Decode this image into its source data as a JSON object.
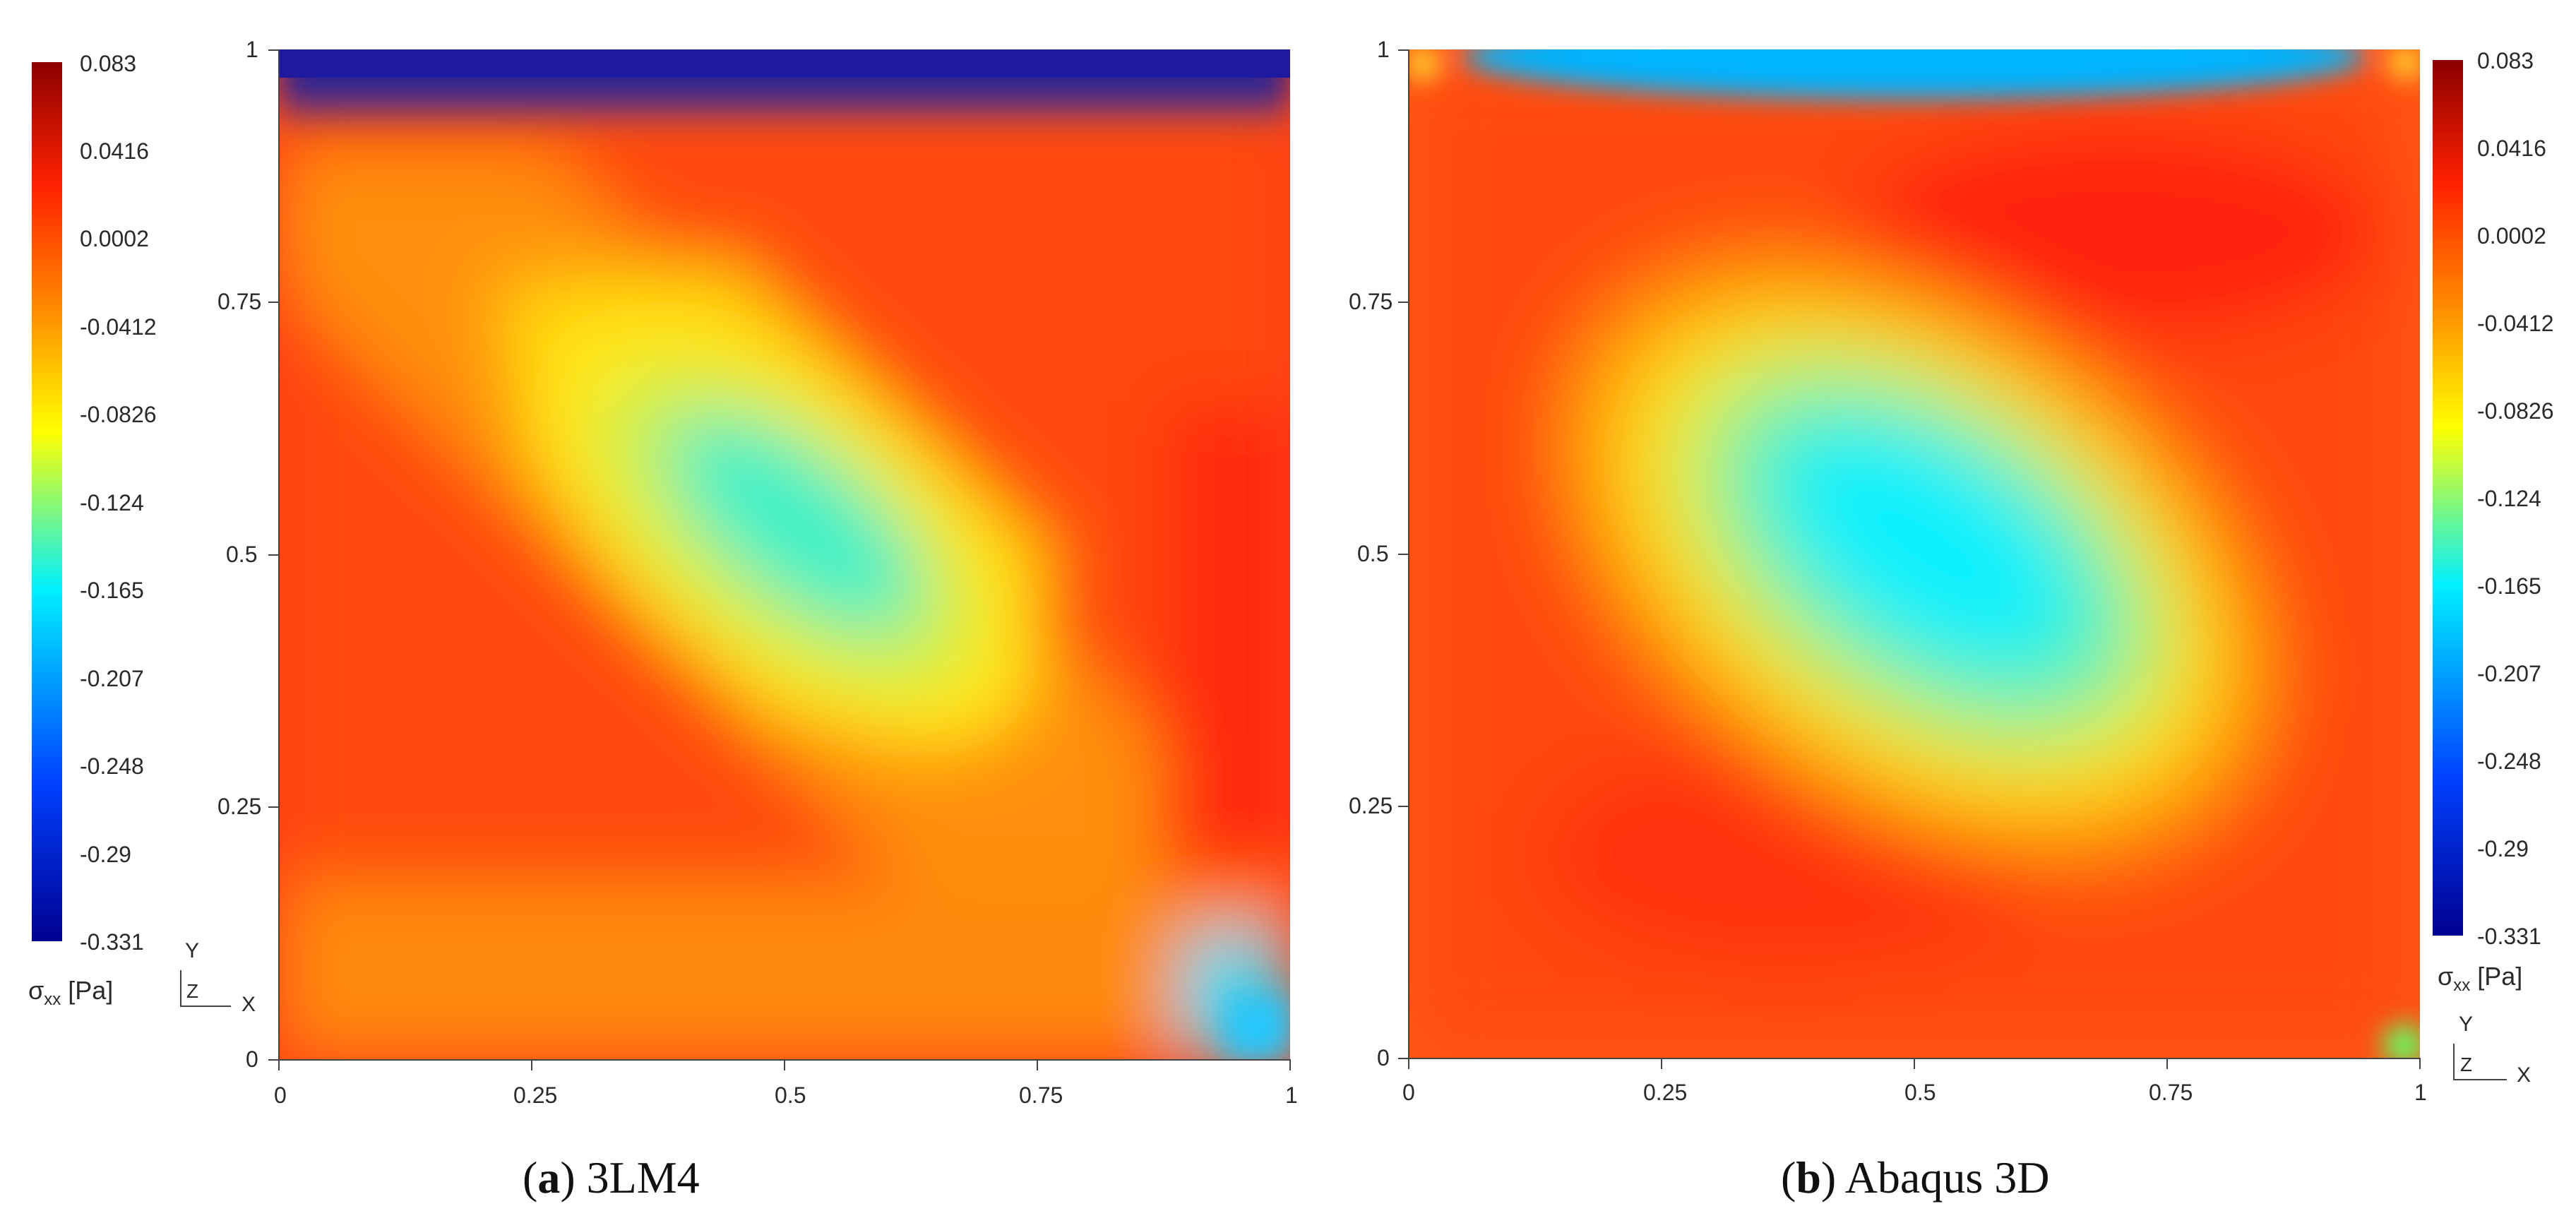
{
  "colorbar": {
    "title_main": "σ",
    "title_sub": "xx",
    "title_unit": "[Pa]",
    "ticks": [
      "0.083",
      "0.0416",
      "0.0002",
      "-0.0412",
      "-0.0826",
      "-0.124",
      "-0.165",
      "-0.207",
      "-0.248",
      "-0.29",
      "-0.331"
    ],
    "colors": [
      "#8b0000",
      "#ff2000",
      "#ff8a00",
      "#ffff00",
      "#00f0ff",
      "#0040ff",
      "#000090"
    ]
  },
  "axes": {
    "y_ticks": [
      "1",
      "0.75",
      "0.5",
      "0.25",
      "0"
    ],
    "x_ticks": [
      "0",
      "0.25",
      "0.5",
      "0.75",
      "1"
    ]
  },
  "triad": {
    "y": "Y",
    "z": "Z",
    "x": "X"
  },
  "panels": [
    {
      "caption_letter": "a",
      "caption_text": "3LM4"
    },
    {
      "caption_letter": "b",
      "caption_text": "Abaqus 3D"
    }
  ]
}
